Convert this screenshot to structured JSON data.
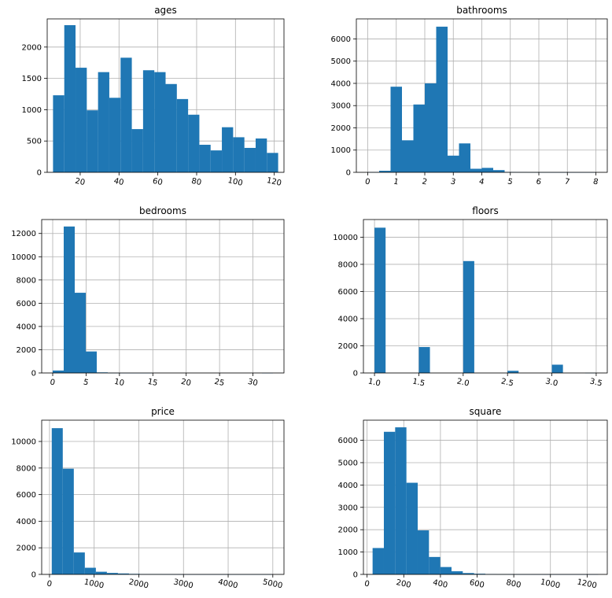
{
  "chart_data": [
    {
      "type": "bar",
      "title": "ages",
      "xlim": [
        3,
        125
      ],
      "ylim": [
        0,
        2450
      ],
      "xticks": [
        20,
        40,
        60,
        80,
        100,
        120
      ],
      "yticks": [
        0,
        500,
        1000,
        1500,
        2000
      ],
      "xtick_rotation": -12,
      "grid": true,
      "bin_edges": [
        6,
        11.8,
        17.6,
        23.4,
        29.2,
        35,
        40.8,
        46.6,
        52.4,
        58.2,
        64,
        69.8,
        75.6,
        81.4,
        87.2,
        93,
        98.8,
        104.6,
        110.4,
        116.2,
        122
      ],
      "values": [
        1230,
        2350,
        1670,
        990,
        1600,
        1190,
        1830,
        690,
        1630,
        1600,
        1410,
        1170,
        920,
        440,
        350,
        720,
        560,
        390,
        540,
        310
      ],
      "color": "#1f77b4"
    },
    {
      "type": "bar",
      "title": "bathrooms",
      "xlim": [
        -0.4,
        8.4
      ],
      "ylim": [
        0,
        6900
      ],
      "xticks": [
        0,
        1,
        2,
        3,
        4,
        5,
        6,
        7,
        8
      ],
      "yticks": [
        0,
        1000,
        2000,
        3000,
        4000,
        5000,
        6000
      ],
      "xtick_rotation": -12,
      "grid": true,
      "bin_edges": [
        0,
        0.4,
        0.8,
        1.2,
        1.6,
        2.0,
        2.4,
        2.8,
        3.2,
        3.6,
        4.0,
        4.4,
        4.8,
        5.2,
        5.6,
        6.0,
        6.4,
        6.8,
        7.2,
        7.6,
        8.0
      ],
      "values": [
        10,
        70,
        3850,
        1440,
        3050,
        4000,
        6550,
        750,
        1300,
        160,
        200,
        100,
        15,
        10,
        5,
        5,
        2,
        2,
        2,
        2
      ],
      "color": "#1f77b4"
    },
    {
      "type": "bar",
      "title": "bedrooms",
      "xlim": [
        -1.65,
        34.65
      ],
      "ylim": [
        0,
        13200
      ],
      "xticks": [
        0,
        5,
        10,
        15,
        20,
        25,
        30
      ],
      "yticks": [
        0,
        2000,
        4000,
        6000,
        8000,
        10000,
        12000
      ],
      "xtick_rotation": -12,
      "grid": true,
      "bin_edges": [
        0,
        1.65,
        3.3,
        4.95,
        6.6,
        8.25,
        9.9,
        11.55,
        13.2,
        14.85,
        16.5,
        18.15,
        19.8,
        21.45,
        23.1,
        24.75,
        26.4,
        28.05,
        29.7,
        31.35,
        33
      ],
      "values": [
        210,
        12600,
        6900,
        1850,
        50,
        10,
        5,
        2,
        1,
        0,
        0,
        0,
        0,
        0,
        0,
        0,
        0,
        0,
        0,
        1
      ],
      "color": "#1f77b4"
    },
    {
      "type": "bar",
      "title": "floors",
      "xlim": [
        0.875,
        3.625
      ],
      "ylim": [
        0,
        11300
      ],
      "xticks": [
        1.0,
        1.5,
        2.0,
        2.5,
        3.0,
        3.5
      ],
      "yticks": [
        0,
        2000,
        4000,
        6000,
        8000,
        10000
      ],
      "xtick_labels": [
        "1.0",
        "1.5",
        "2.0",
        "2.5",
        "3.0",
        "3.5"
      ],
      "xtick_rotation": -12,
      "grid": true,
      "bin_edges": [
        1.0,
        1.125,
        1.25,
        1.375,
        1.5,
        1.625,
        1.75,
        1.875,
        2.0,
        2.125,
        2.25,
        2.375,
        2.5,
        2.625,
        2.75,
        2.875,
        3.0,
        3.125,
        3.25,
        3.375,
        3.5
      ],
      "values": [
        10700,
        0,
        0,
        0,
        1910,
        0,
        0,
        0,
        8240,
        0,
        0,
        0,
        160,
        0,
        0,
        0,
        610,
        0,
        0,
        8
      ],
      "color": "#1f77b4"
    },
    {
      "type": "bar",
      "title": "price",
      "xlim": [
        -175,
        5250
      ],
      "ylim": [
        0,
        11600
      ],
      "xticks": [
        0,
        1000,
        2000,
        3000,
        4000,
        5000
      ],
      "yticks": [
        0,
        2000,
        4000,
        6000,
        8000,
        10000
      ],
      "xtick_rotation": -12,
      "grid": true,
      "bin_edges": [
        50,
        297,
        544,
        791,
        1038,
        1285,
        1532,
        1779,
        2026,
        2273,
        2520,
        2767,
        3014,
        3261,
        3508,
        3755,
        4002,
        4249,
        4496,
        4743,
        4990
      ],
      "values": [
        11000,
        7950,
        1650,
        500,
        200,
        110,
        70,
        40,
        20,
        15,
        8,
        5,
        3,
        3,
        2,
        2,
        1,
        1,
        1,
        1
      ],
      "color": "#1f77b4"
    },
    {
      "type": "bar",
      "title": "square",
      "xlim": [
        -20,
        1310
      ],
      "ylim": [
        0,
        6900
      ],
      "xticks": [
        0,
        200,
        400,
        600,
        800,
        1000,
        1200
      ],
      "yticks": [
        0,
        1000,
        2000,
        3000,
        4000,
        5000,
        6000
      ],
      "xtick_rotation": -12,
      "grid": true,
      "bin_edges": [
        30,
        91.5,
        153,
        214.5,
        276,
        337.5,
        399,
        460.5,
        522,
        583.5,
        645,
        706.5,
        768,
        829.5,
        891,
        952.5,
        1014,
        1075.5,
        1137,
        1198.5,
        1260
      ],
      "values": [
        1180,
        6380,
        6580,
        4100,
        1970,
        780,
        330,
        140,
        60,
        30,
        15,
        8,
        5,
        3,
        2,
        1,
        1,
        1,
        1,
        1
      ],
      "color": "#1f77b4"
    }
  ]
}
